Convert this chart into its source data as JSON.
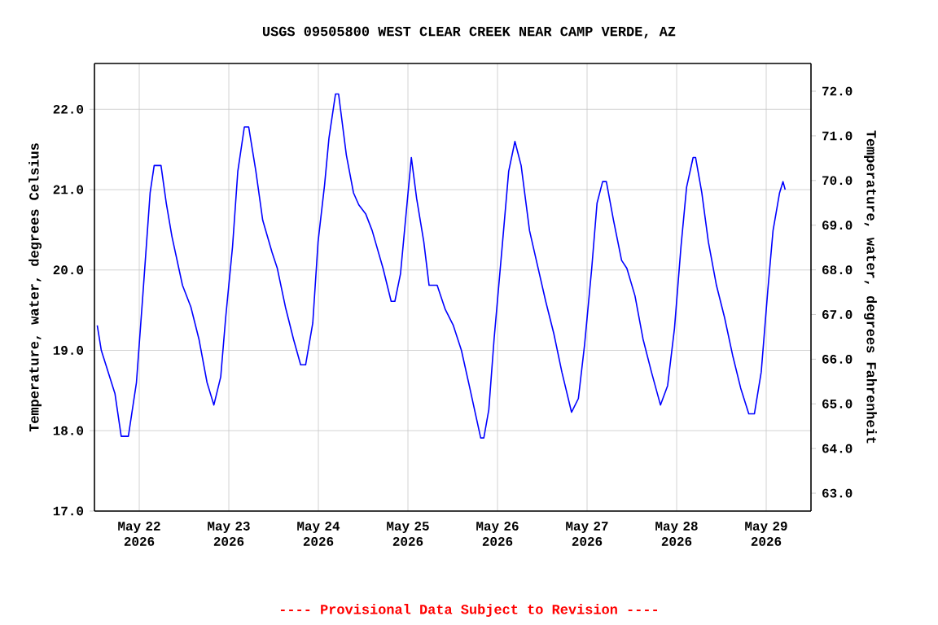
{
  "chart_data": {
    "type": "line",
    "title": "USGS 09505800 WEST CLEAR CREEK NEAR CAMP VERDE, AZ",
    "ylabel": "Temperature, water, degrees Celsius",
    "y2label": "Temperature, water, degrees Fahrenheit",
    "annotations": [
      "---- Provisional Data Subject to Revision ----"
    ],
    "xlim": [
      "2026-05-21T12:00",
      "2026-05-29T12:00"
    ],
    "xticks": [
      {
        "value": "2026-05-22",
        "label": "May 22 2026"
      },
      {
        "value": "2026-05-23",
        "label": "May 23 2026"
      },
      {
        "value": "2026-05-24",
        "label": "May 24 2026"
      },
      {
        "value": "2026-05-25",
        "label": "May 25 2026"
      },
      {
        "value": "2026-05-26",
        "label": "May 26 2026"
      },
      {
        "value": "2026-05-27",
        "label": "May 27 2026"
      },
      {
        "value": "2026-05-28",
        "label": "May 28 2026"
      },
      {
        "value": "2026-05-29",
        "label": "May 29 2026"
      }
    ],
    "ylim": [
      17.0,
      22.57
    ],
    "yticks": [
      {
        "value": 17,
        "label": "17.0"
      },
      {
        "value": 18,
        "label": "18.0"
      },
      {
        "value": 19,
        "label": "19.0"
      },
      {
        "value": 20,
        "label": "20.0"
      },
      {
        "value": 21,
        "label": "21.0"
      },
      {
        "value": 22,
        "label": "22.0"
      }
    ],
    "y2lim": [
      62.6,
      72.62
    ],
    "y2ticks": [
      {
        "value": 63,
        "label": "63.0"
      },
      {
        "value": 64,
        "label": "64.0"
      },
      {
        "value": 65,
        "label": "65.0"
      },
      {
        "value": 66,
        "label": "66.0"
      },
      {
        "value": 67,
        "label": "67.0"
      },
      {
        "value": 68,
        "label": "68.0"
      },
      {
        "value": 69,
        "label": "69.0"
      },
      {
        "value": 70,
        "label": "70.0"
      },
      {
        "value": 71,
        "label": "71.0"
      },
      {
        "value": 72,
        "label": "72.0"
      }
    ],
    "grid": true,
    "marker": "none",
    "line_style": "solid",
    "x": [
      "2026-05-21T12:45",
      "2026-05-21T13:50",
      "2026-05-21T17:30",
      "2026-05-21T19:10",
      "2026-05-21T21:05",
      "2026-05-21T23:15",
      "2026-05-22T01:00",
      "2026-05-22T02:55",
      "2026-05-22T04:00",
      "2026-05-22T05:50",
      "2026-05-22T07:15",
      "2026-05-22T08:45",
      "2026-05-22T11:35",
      "2026-05-22T13:50",
      "2026-05-22T16:00",
      "2026-05-22T18:10",
      "2026-05-22T20:00",
      "2026-05-22T21:50",
      "2026-05-22T23:10",
      "2026-05-23T01:00",
      "2026-05-23T02:25",
      "2026-05-23T04:10",
      "2026-05-23T05:20",
      "2026-05-23T07:15",
      "2026-05-23T09:05",
      "2026-05-23T11:35",
      "2026-05-23T13:00",
      "2026-05-23T15:10",
      "2026-05-23T17:20",
      "2026-05-23T19:15",
      "2026-05-23T20:35",
      "2026-05-23T22:30",
      "2026-05-23T23:55",
      "2026-05-24T01:40",
      "2026-05-24T02:50",
      "2026-05-24T04:35",
      "2026-05-24T05:25",
      "2026-05-24T07:30",
      "2026-05-24T09:25",
      "2026-05-24T10:50",
      "2026-05-24T12:40",
      "2026-05-24T14:25",
      "2026-05-24T17:20",
      "2026-05-24T19:30",
      "2026-05-24T20:30",
      "2026-05-24T22:00",
      "2026-05-24T23:05",
      "2026-05-25T00:55",
      "2026-05-25T02:20",
      "2026-05-25T04:15",
      "2026-05-25T05:40",
      "2026-05-25T07:50",
      "2026-05-25T10:00",
      "2026-05-25T12:10",
      "2026-05-25T14:20",
      "2026-05-25T16:35",
      "2026-05-25T19:30",
      "2026-05-25T20:20",
      "2026-05-25T21:40",
      "2026-05-25T23:05",
      "2026-05-26T01:15",
      "2026-05-26T03:00",
      "2026-05-26T04:40",
      "2026-05-26T06:20",
      "2026-05-26T08:35",
      "2026-05-26T10:45",
      "2026-05-26T12:55",
      "2026-05-26T15:05",
      "2026-05-26T17:15",
      "2026-05-26T19:50",
      "2026-05-26T21:40",
      "2026-05-26T23:20",
      "2026-05-27T01:15",
      "2026-05-27T02:40",
      "2026-05-27T04:10",
      "2026-05-27T05:10",
      "2026-05-27T07:05",
      "2026-05-27T09:15",
      "2026-05-27T10:40",
      "2026-05-27T12:50",
      "2026-05-27T15:00",
      "2026-05-27T17:15",
      "2026-05-27T19:40",
      "2026-05-27T21:35",
      "2026-05-27T23:25",
      "2026-05-28T01:10",
      "2026-05-28T02:40",
      "2026-05-28T04:25",
      "2026-05-28T05:05",
      "2026-05-28T06:45",
      "2026-05-28T08:30",
      "2026-05-28T10:40",
      "2026-05-28T12:50",
      "2026-05-28T15:00",
      "2026-05-28T17:10",
      "2026-05-28T19:20",
      "2026-05-28T20:50",
      "2026-05-28T22:40",
      "2026-05-29T00:25",
      "2026-05-29T01:50",
      "2026-05-29T03:35",
      "2026-05-29T04:30",
      "2026-05-29T05:05"
    ],
    "series": [
      {
        "color": "#0000ff",
        "values": [
          19.31,
          19.0,
          18.46,
          17.93,
          17.93,
          18.6,
          19.71,
          20.96,
          21.3,
          21.3,
          20.83,
          20.42,
          19.81,
          19.54,
          19.14,
          18.6,
          18.32,
          18.67,
          19.41,
          20.29,
          21.23,
          21.78,
          21.78,
          21.23,
          20.62,
          20.22,
          20.02,
          19.54,
          19.14,
          18.82,
          18.82,
          19.34,
          20.35,
          21.06,
          21.64,
          22.19,
          22.19,
          21.43,
          20.96,
          20.81,
          20.7,
          20.49,
          20.02,
          19.61,
          19.61,
          19.95,
          20.49,
          21.4,
          20.89,
          20.35,
          19.81,
          19.81,
          19.51,
          19.31,
          19.0,
          18.53,
          17.91,
          17.91,
          18.26,
          19.14,
          20.29,
          21.23,
          21.6,
          21.3,
          20.49,
          20.05,
          19.61,
          19.21,
          18.73,
          18.23,
          18.4,
          19.07,
          20.02,
          20.83,
          21.1,
          21.1,
          20.62,
          20.12,
          20.02,
          19.68,
          19.14,
          18.73,
          18.32,
          18.56,
          19.27,
          20.29,
          21.03,
          21.4,
          21.4,
          20.96,
          20.35,
          19.81,
          19.41,
          18.94,
          18.53,
          18.21,
          18.21,
          18.73,
          19.74,
          20.49,
          20.96,
          21.1,
          21.0
        ]
      }
    ]
  }
}
